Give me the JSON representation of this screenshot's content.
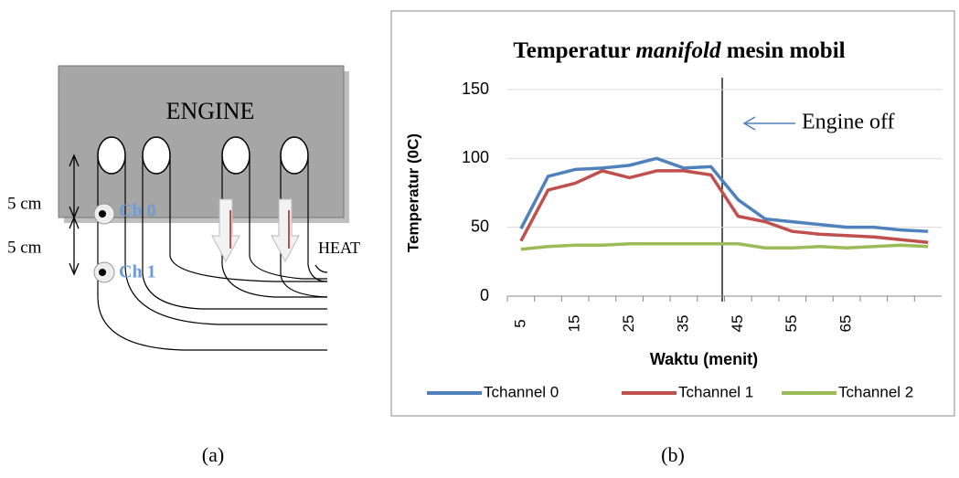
{
  "diagram": {
    "engine": "ENGINE",
    "dist_0": "5 cm",
    "dist_1": "5 cm",
    "ch_0": "Ch 0",
    "ch_1": "Ch 1",
    "heat": "HEAT",
    "caption": "(a)"
  },
  "caption_b": "(b)",
  "chart_data": {
    "type": "line",
    "title": [
      "Temperatur",
      "manifold",
      "mesin mobil"
    ],
    "x_label": "Waktu (menit)",
    "y_label": "Temperatur (0C)",
    "annotation": "Engine off",
    "categories": [
      5,
      null,
      15,
      null,
      25,
      null,
      35,
      null,
      45,
      null,
      55,
      null,
      65,
      null,
      null,
      null
    ],
    "series": [
      {
        "name": "Tchannel 0",
        "color": "#4f81bd",
        "values": [
          49,
          87,
          92,
          93,
          95,
          100,
          93,
          94,
          70,
          56,
          54,
          52,
          50,
          50,
          48,
          47
        ]
      },
      {
        "name": "Tchannel 1",
        "color": "#c0504d",
        "values": [
          40,
          77,
          82,
          91,
          86,
          91,
          91,
          88,
          58,
          54,
          47,
          45,
          44,
          43,
          41,
          39
        ]
      },
      {
        "name": "Tchannel 2",
        "color": "#9bbb59",
        "values": [
          34,
          36,
          37,
          37,
          38,
          38,
          38,
          38,
          38,
          35,
          35,
          36,
          35,
          36,
          37,
          36
        ]
      }
    ],
    "ylim": [
      0,
      150
    ],
    "yticks": [
      0,
      50,
      100,
      150
    ],
    "grid": true,
    "legend": "bottom"
  }
}
